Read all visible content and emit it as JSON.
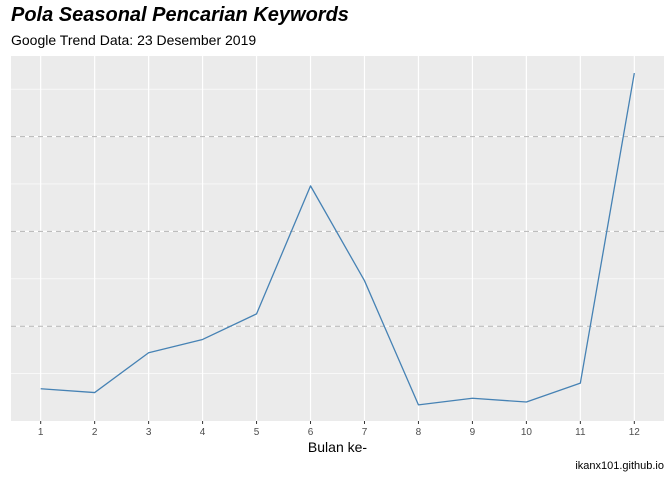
{
  "chart_data": {
    "type": "line",
    "title": "Pola Seasonal Pencarian Keywords",
    "subtitle": "Google Trend Data: 23 Desember 2019",
    "xlabel": "Bulan ke-",
    "ylabel": "",
    "x": [
      1,
      2,
      3,
      4,
      5,
      6,
      7,
      8,
      9,
      10,
      11,
      12
    ],
    "series": [
      {
        "values": [
          0.34,
          0.3,
          0.72,
          0.86,
          1.13,
          2.48,
          1.48,
          0.17,
          0.24,
          0.2,
          0.4,
          3.67
        ]
      }
    ],
    "xlim": [
      0.45,
      12.55
    ],
    "ylim": [
      0,
      3.85
    ],
    "x_ticks": [
      1,
      2,
      3,
      4,
      5,
      6,
      7,
      8,
      9,
      10,
      11,
      12
    ],
    "y_ticks_major": [
      1,
      2,
      3
    ],
    "y_ticks_minor": [
      0.5,
      1.5,
      2.5,
      3.5
    ],
    "y_tick_labels_shown": false,
    "grid": true,
    "reference_lines": [
      1,
      2,
      3
    ],
    "colors": {
      "panel": "#ebebeb",
      "grid": "#ffffff",
      "line": "#4682b4",
      "reference": "#b4b4b4"
    }
  },
  "caption": "ikanx101.github.io"
}
